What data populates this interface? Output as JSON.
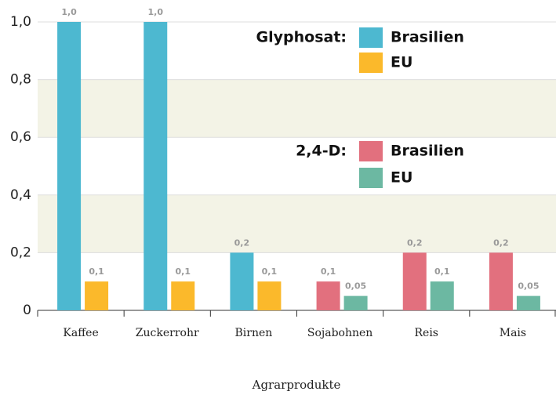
{
  "chart_data": {
    "type": "bar",
    "x_label": "Agrarprodukte",
    "categories": [
      "Kaffee",
      "Zuckerrohr",
      "Birnen",
      "Sojabohnen",
      "Reis",
      "Mais"
    ],
    "groups": [
      {
        "title": "Glyphosat:",
        "series": [
          {
            "name": "Brasilien",
            "color": "#4db8d0",
            "values": [
              1.0,
              1.0,
              0.2,
              null,
              null,
              null
            ],
            "value_labels": [
              "1,0",
              "1,0",
              "0,2",
              null,
              null,
              null
            ]
          },
          {
            "name": "EU",
            "color": "#fbb92b",
            "values": [
              0.1,
              0.1,
              0.1,
              null,
              null,
              null
            ],
            "value_labels": [
              "0,1",
              "0,1",
              "0,1",
              null,
              null,
              null
            ]
          }
        ]
      },
      {
        "title": "2,4-D:",
        "series": [
          {
            "name": "Brasilien",
            "color": "#e2707e",
            "values": [
              null,
              null,
              null,
              0.1,
              0.2,
              0.2
            ],
            "value_labels": [
              null,
              null,
              null,
              "0,1",
              "0,2",
              "0,2"
            ]
          },
          {
            "name": "EU",
            "color": "#6cb8a2",
            "values": [
              null,
              null,
              null,
              0.05,
              0.1,
              0.05
            ],
            "value_labels": [
              null,
              null,
              null,
              "0,05",
              "0,1",
              "0,05"
            ]
          }
        ]
      }
    ],
    "ylim": [
      0,
      1.0
    ],
    "yticks": [
      0,
      {
        "value": 0.2,
        "label": "0,2"
      },
      {
        "value": 0.4,
        "label": "0,4"
      },
      {
        "value": 0.6,
        "label": "0,6"
      },
      {
        "value": 0.8,
        "label": "0,8"
      },
      {
        "value": 1.0,
        "label": "1,0"
      }
    ],
    "grid": true
  }
}
